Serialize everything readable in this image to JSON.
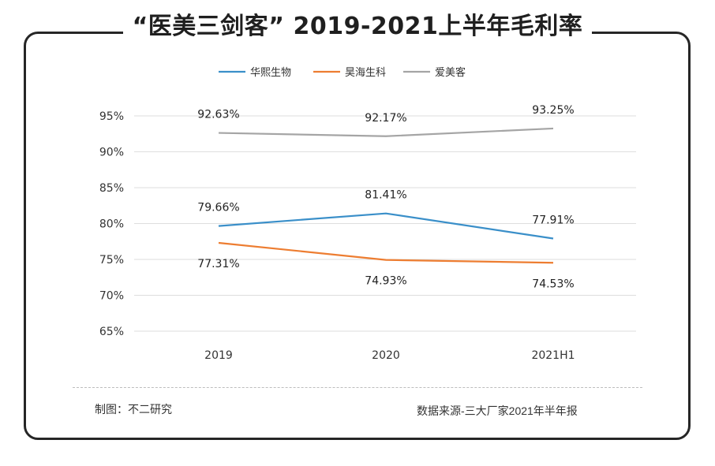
{
  "title": "“医美三剑客” 2019-2021上半年毛利率",
  "chart_data": {
    "type": "line",
    "categories": [
      "2019",
      "2020",
      "2021H1"
    ],
    "y_ticks": [
      "95%",
      "90%",
      "85%",
      "80%",
      "75%",
      "70%",
      "65%"
    ],
    "ylim": [
      65,
      95
    ],
    "series": [
      {
        "name": "华熙生物",
        "color": "#3a8fc9",
        "values": [
          79.66,
          81.41,
          77.91
        ],
        "labels": [
          "79.66%",
          "81.41%",
          "77.91%"
        ],
        "label_pos": "above"
      },
      {
        "name": "昊海生科",
        "color": "#ed7d31",
        "values": [
          77.31,
          74.93,
          74.53
        ],
        "labels": [
          "77.31%",
          "74.93%",
          "74.53%"
        ],
        "label_pos": "below"
      },
      {
        "name": "爱美客",
        "color": "#a5a5a5",
        "values": [
          92.63,
          92.17,
          93.25
        ],
        "labels": [
          "92.63%",
          "92.17%",
          "93.25%"
        ],
        "label_pos": "above"
      }
    ]
  },
  "footer": {
    "credit": "制图：不二研究",
    "source": "数据来源-三大厂家2021年半年报"
  }
}
